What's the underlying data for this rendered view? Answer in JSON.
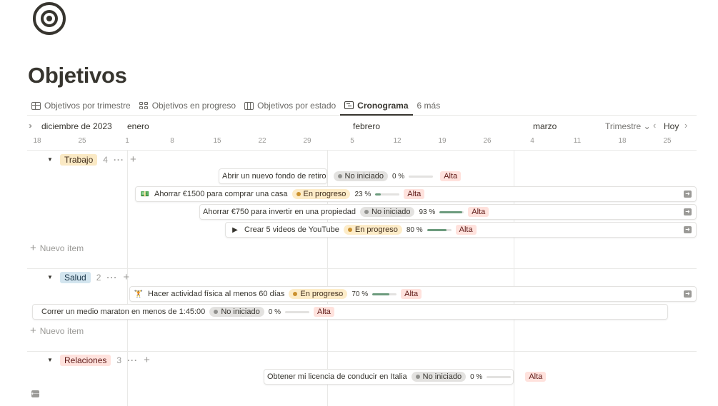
{
  "page": {
    "title": "Objetivos",
    "icon": "target-icon"
  },
  "tabs": [
    {
      "label": "Objetivos por trimestre",
      "icon": "table-icon",
      "active": false
    },
    {
      "label": "Objetivos en progreso",
      "icon": "gallery-icon",
      "active": false
    },
    {
      "label": "Objetivos por estado",
      "icon": "board-icon",
      "active": false
    },
    {
      "label": "Cronograma",
      "icon": "timeline-icon",
      "active": true
    },
    {
      "label": "6 más",
      "icon": "",
      "active": false
    }
  ],
  "timeline": {
    "months": [
      "diciembre de 2023",
      "enero",
      "febrero",
      "marzo"
    ],
    "view": "Trimestre",
    "today": "Hoy",
    "days": [
      "18",
      "25",
      "1",
      "8",
      "15",
      "22",
      "29",
      "5",
      "12",
      "19",
      "26",
      "4",
      "11",
      "18",
      "25"
    ]
  },
  "groups": [
    {
      "name": "Trabajo",
      "count": "4",
      "color": "#fae9c4",
      "items": [
        {
          "title": "Abrir un nuevo fondo de retiro",
          "icon": "",
          "status": "No iniciado",
          "progress_label": "0 %",
          "progress": 0,
          "priority": "Alta"
        },
        {
          "title": "Ahorrar €1500 para comprar una casa",
          "icon": "money-icon",
          "status": "En progreso",
          "progress_label": "23 %",
          "progress": 0.23,
          "priority": "Alta"
        },
        {
          "title": "Ahorrar €750 para invertir en una propiedad",
          "icon": "",
          "status": "No iniciado",
          "progress_label": "93 %",
          "progress": 0.93,
          "priority": "Alta"
        },
        {
          "title": "Crear 5 videos de YouTube",
          "icon": "play-icon",
          "status": "En progreso",
          "progress_label": "80 %",
          "progress": 0.8,
          "priority": "Alta"
        }
      ],
      "new_item": "Nuevo ítem"
    },
    {
      "name": "Salud",
      "count": "2",
      "color": "#d3e5ef",
      "items": [
        {
          "title": "Hacer actividad física al menos 60 días",
          "icon": "dumbbell-icon",
          "status": "En progreso",
          "progress_label": "70 %",
          "progress": 0.7,
          "priority": "Alta"
        },
        {
          "title": "Correr un medio maraton en menos de 1:45:00",
          "icon": "",
          "status": "No iniciado",
          "progress_label": "0 %",
          "progress": 0,
          "priority": "Alta"
        }
      ],
      "new_item": "Nuevo ítem"
    },
    {
      "name": "Relaciones",
      "count": "3",
      "color": "#ffe2dd",
      "items": [
        {
          "title": "Obtener mi licencia de conducir en Italia",
          "icon": "",
          "status": "No iniciado",
          "progress_label": "0 %",
          "progress": 0,
          "priority": "Alta"
        }
      ]
    }
  ],
  "colors": {
    "no_iniciado_bg": "#e3e2e0",
    "no_iniciado_dot": "#91918e",
    "en_progreso_bg": "#fdecc8",
    "en_progreso_dot": "#cb912f",
    "alta_bg": "#ffe2dd",
    "alta_text": "#5d1715",
    "progress_fill": "#6c9b7d"
  }
}
